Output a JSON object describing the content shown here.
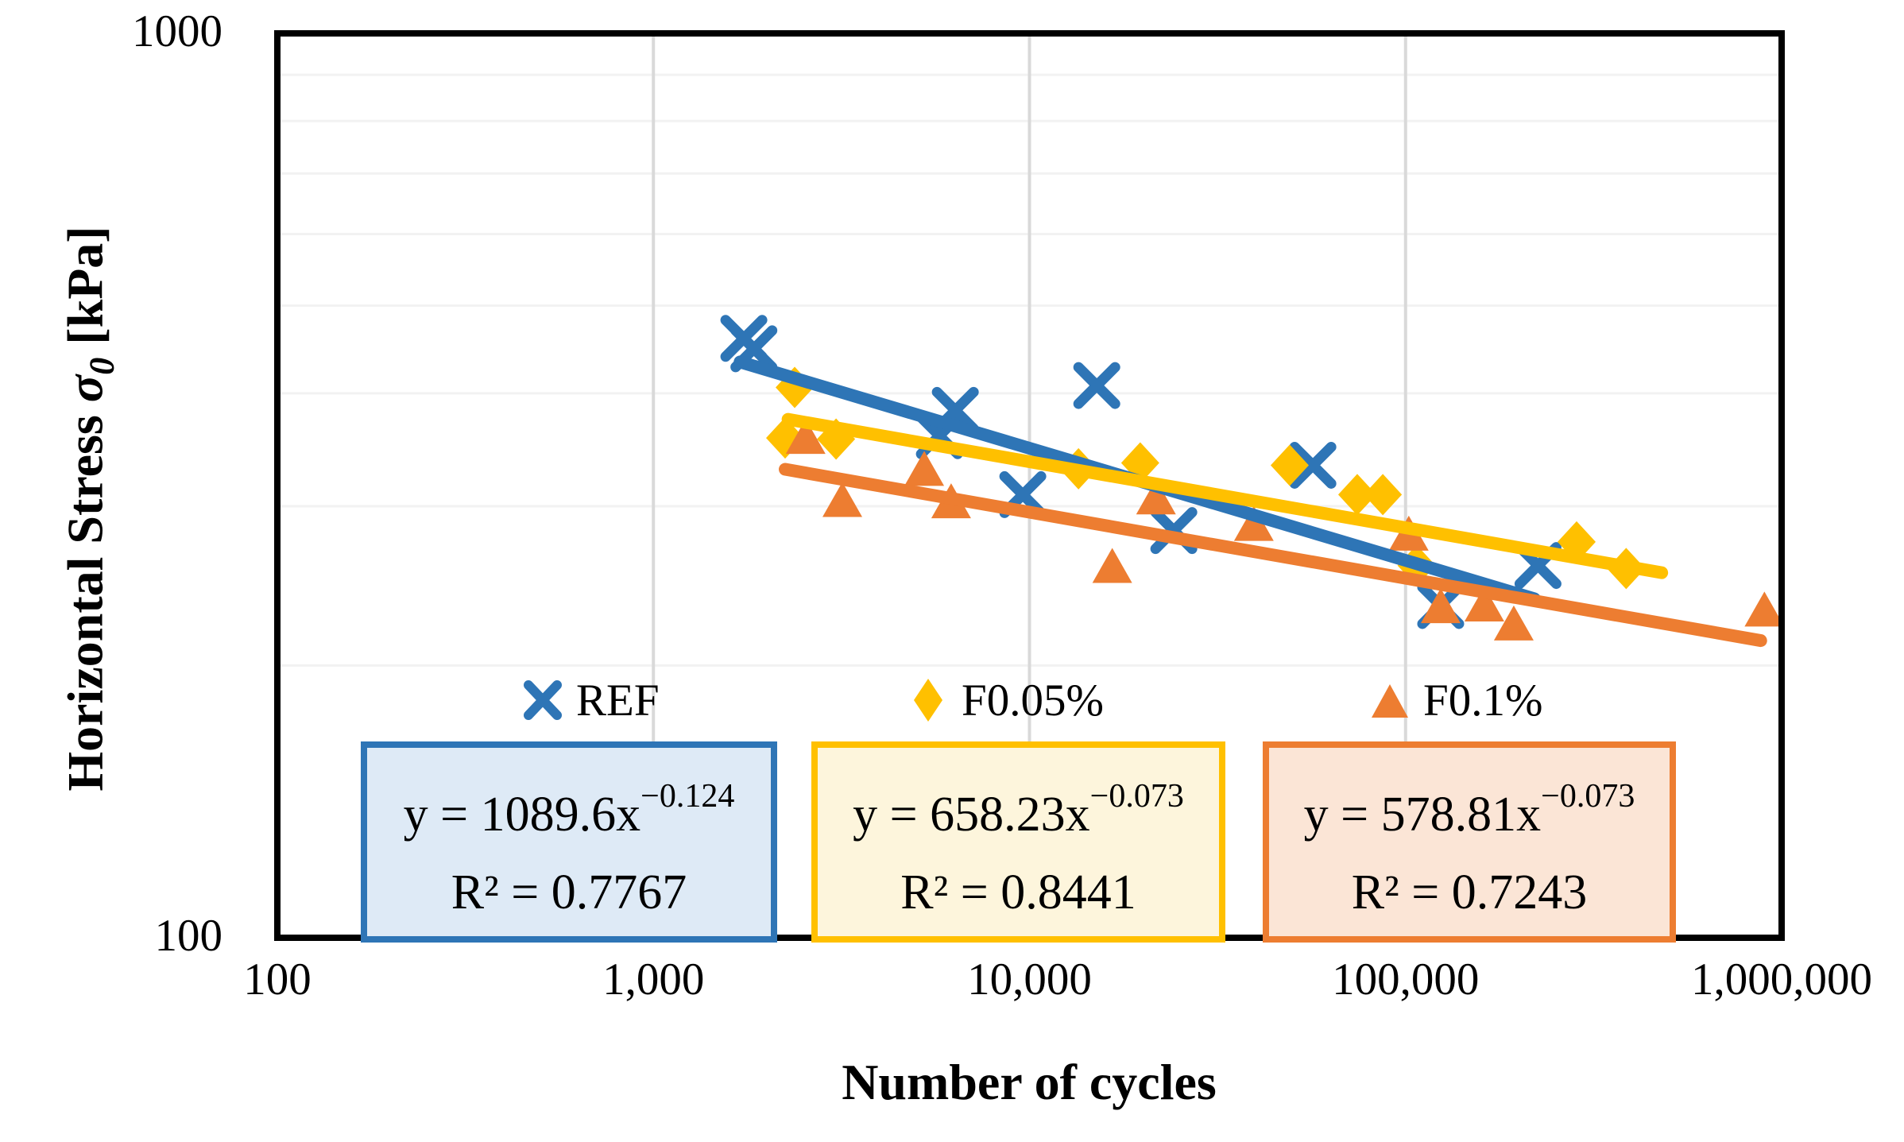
{
  "figure": {
    "background": "#FFFFFF",
    "y_axis_title": {
      "prefix": "Horizontal Stress ",
      "symbol": "σ",
      "subscript": "0",
      "suffix": " [kPa]"
    }
  },
  "chart_data": {
    "type": "scatter",
    "title": "",
    "xlabel": "Number of cycles",
    "ylabel": "Horizontal Stress σ0 [kPa]",
    "x_axis": {
      "label": "Number of cycles",
      "scale": "log",
      "min": 100,
      "max": 1000000,
      "ticks": [
        {
          "value": 100,
          "label": "100"
        },
        {
          "value": 1000,
          "label": "1,000"
        },
        {
          "value": 10000,
          "label": "10,000"
        },
        {
          "value": 100000,
          "label": "100,000"
        },
        {
          "value": 1000000,
          "label": "1,000,000"
        }
      ]
    },
    "y_axis": {
      "label": "Horizontal Stress σ0 [kPa]",
      "scale": "log",
      "min": 100,
      "max": 1000,
      "ticks": [
        {
          "value": 1000,
          "label": "1000"
        },
        {
          "value": 100,
          "label": "100"
        }
      ]
    },
    "gridlines": {
      "horizontal_values": [
        200,
        300,
        400,
        500,
        600,
        700,
        800,
        900
      ],
      "vertical_values": [
        1000,
        10000,
        100000
      ],
      "horizontal_color": "#F2F2F2",
      "vertical_color": "#D9D9D9"
    },
    "series": [
      {
        "name": "REF",
        "marker": "x",
        "color": "#2E75B6",
        "points": [
          [
            1740,
            460
          ],
          [
            1850,
            448
          ],
          [
            5760,
            359
          ],
          [
            6350,
            383
          ],
          [
            9600,
            309
          ],
          [
            15100,
            408
          ],
          [
            24200,
            282
          ],
          [
            56700,
            333
          ],
          [
            124000,
            233
          ],
          [
            225000,
            258
          ]
        ]
      },
      {
        "name": "F0.05%",
        "marker": "diamond",
        "color": "#FFC000",
        "points": [
          [
            2240,
            357
          ],
          [
            2375,
            406
          ],
          [
            3060,
            356
          ],
          [
            13500,
            330
          ],
          [
            19700,
            335
          ],
          [
            49200,
            333
          ],
          [
            74400,
            309
          ],
          [
            87000,
            309
          ],
          [
            107000,
            258
          ],
          [
            285000,
            274
          ],
          [
            386000,
            256
          ]
        ]
      },
      {
        "name": "F0.1%",
        "marker": "triangle",
        "color": "#ED7D31",
        "points": [
          [
            2540,
            357
          ],
          [
            3180,
            304
          ],
          [
            5250,
            329
          ],
          [
            6190,
            303
          ],
          [
            16600,
            257
          ],
          [
            21700,
            306
          ],
          [
            39500,
            286
          ],
          [
            102000,
            279
          ],
          [
            124000,
            232
          ],
          [
            162000,
            233
          ],
          [
            194000,
            222
          ],
          [
            900000,
            230
          ]
        ]
      }
    ],
    "trendlines": [
      {
        "series": "REF",
        "color": "#2E75B6",
        "coefficient": 1089.6,
        "exponent": -0.124,
        "x_range": [
          1700,
          220000
        ],
        "equation_base": "y = 1089.6x",
        "equation_exponent": "−0.124",
        "r_squared": "R² = 0.7767",
        "box_fill": "#DEEAF6",
        "box_border": "#2E75B6"
      },
      {
        "series": "F0.05%",
        "color": "#FFC000",
        "coefficient": 658.23,
        "exponent": -0.073,
        "x_range": [
          2280,
          480000
        ],
        "equation_base": "y = 658.23x",
        "equation_exponent": "−0.073",
        "r_squared": "R² = 0.8441",
        "box_fill": "#FDF5DC",
        "box_border": "#FFC000"
      },
      {
        "series": "F0.1%",
        "color": "#ED7D31",
        "coefficient": 578.81,
        "exponent": -0.073,
        "x_range": [
          2240,
          880000
        ],
        "equation_base": "y = 578.81x",
        "equation_exponent": "−0.073",
        "r_squared": "R² = 0.7243",
        "box_fill": "#FBE5D6",
        "box_border": "#ED7D31"
      }
    ],
    "legend_position": "inside-bottom",
    "grid": true
  }
}
